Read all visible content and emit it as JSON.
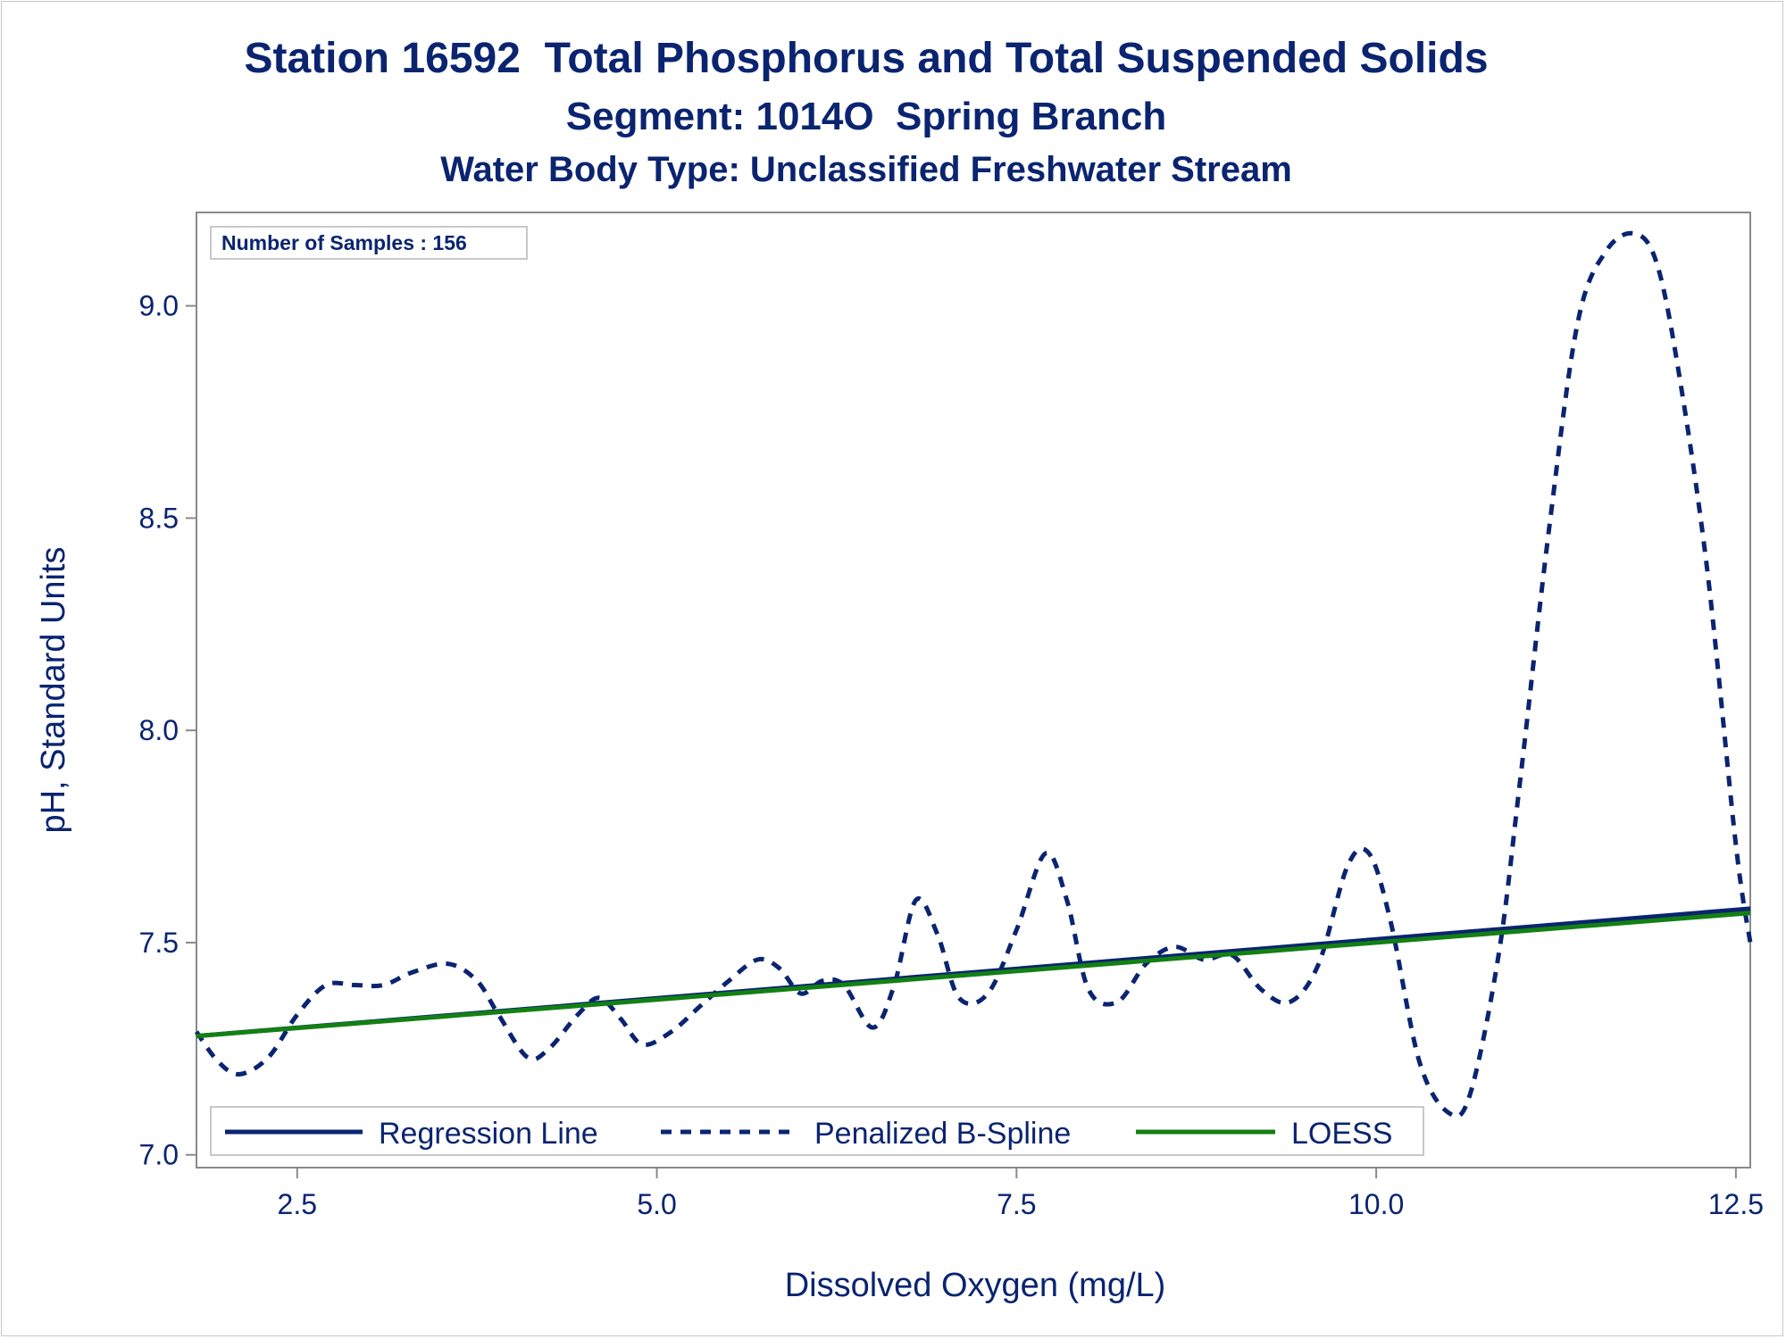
{
  "titles": {
    "line1": "Station 16592  Total Phosphorus and Total Suspended Solids",
    "line2": "Segment: 1014O  Spring Branch",
    "line3": "Water Body Type: Unclassified Freshwater Stream"
  },
  "inset": {
    "label": "Number of Samples : 156"
  },
  "colors": {
    "text": "#0a2470",
    "regression": "#0a2470",
    "spline": "#0a2470",
    "loess": "#138013",
    "axis": "#8a8a8a"
  },
  "chart_data": {
    "type": "line",
    "title": "",
    "xlabel": "Dissolved Oxygen (mg/L)",
    "ylabel": "pH, Standard Units",
    "xlim": [
      1.8,
      12.6
    ],
    "ylim": [
      6.97,
      9.22
    ],
    "x_ticks": [
      2.5,
      5.0,
      7.5,
      10.0,
      12.5
    ],
    "y_ticks": [
      7.0,
      7.5,
      8.0,
      8.5,
      9.0
    ],
    "tick_labels_x": [
      "2.5",
      "5.0",
      "7.5",
      "10.0",
      "12.5"
    ],
    "tick_labels_y": [
      "7.0",
      "7.5",
      "8.0",
      "8.5",
      "9.0"
    ],
    "grid": false,
    "legend_position": "bottom-left inside",
    "series": [
      {
        "name": "Regression Line",
        "style": "solid",
        "x": [
          1.8,
          12.6
        ],
        "y": [
          7.28,
          7.58
        ]
      },
      {
        "name": "Penalized B-Spline",
        "style": "dashed",
        "x": [
          1.8,
          1.95,
          2.1,
          2.3,
          2.5,
          2.7,
          2.9,
          3.1,
          3.3,
          3.55,
          3.75,
          3.9,
          4.1,
          4.25,
          4.45,
          4.6,
          4.75,
          4.9,
          5.1,
          5.3,
          5.5,
          5.7,
          5.85,
          6.0,
          6.15,
          6.3,
          6.5,
          6.65,
          6.8,
          6.95,
          7.1,
          7.3,
          7.5,
          7.7,
          7.85,
          8.0,
          8.2,
          8.4,
          8.6,
          8.8,
          9.0,
          9.2,
          9.4,
          9.6,
          9.8,
          9.95,
          10.1,
          10.3,
          10.5,
          10.65,
          10.85,
          11.0,
          11.2,
          11.4,
          11.6,
          11.8,
          11.95,
          12.1,
          12.3,
          12.5,
          12.6
        ],
        "y": [
          7.29,
          7.22,
          7.19,
          7.23,
          7.33,
          7.4,
          7.4,
          7.4,
          7.43,
          7.45,
          7.41,
          7.33,
          7.23,
          7.25,
          7.33,
          7.37,
          7.32,
          7.26,
          7.29,
          7.35,
          7.41,
          7.46,
          7.44,
          7.38,
          7.41,
          7.4,
          7.3,
          7.4,
          7.6,
          7.52,
          7.37,
          7.38,
          7.53,
          7.71,
          7.6,
          7.39,
          7.36,
          7.45,
          7.49,
          7.46,
          7.47,
          7.39,
          7.36,
          7.45,
          7.68,
          7.71,
          7.55,
          7.22,
          7.1,
          7.14,
          7.47,
          7.88,
          8.47,
          8.96,
          9.13,
          9.17,
          9.1,
          8.85,
          8.38,
          7.73,
          7.5
        ]
      },
      {
        "name": "LOESS",
        "style": "solid",
        "x": [
          1.8,
          12.6
        ],
        "y": [
          7.28,
          7.57
        ]
      }
    ]
  }
}
